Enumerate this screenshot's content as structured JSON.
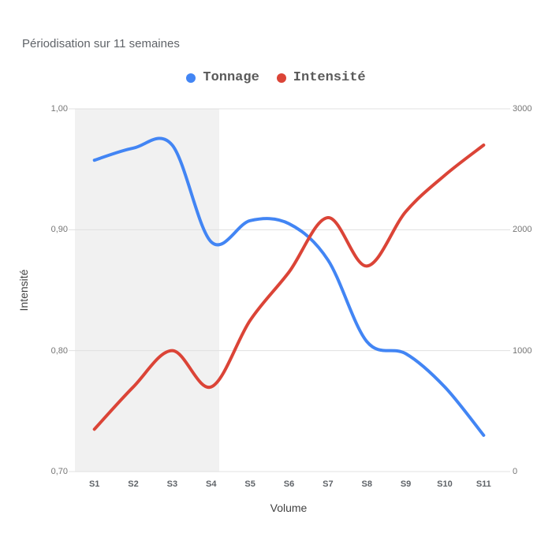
{
  "title": "Périodisation sur 11 semaines",
  "legend": {
    "items": [
      {
        "label": "Tonnage",
        "color": "#4285f4"
      },
      {
        "label": "Intensité",
        "color": "#db4437"
      }
    ]
  },
  "colors": {
    "tonnage_blue": "#4285f4",
    "intensite_red": "#db4437",
    "highlight_band": "#f1f1f1",
    "gridline": "#e0e0e0"
  },
  "chart_data": {
    "type": "line",
    "smooth": true,
    "legend_position": "top",
    "grid": "horizontal-only",
    "categories": [
      "S1",
      "S2",
      "S3",
      "S4",
      "S5",
      "S6",
      "S7",
      "S8",
      "S9",
      "S10",
      "S11"
    ],
    "series": [
      {
        "name": "Tonnage",
        "axis": "right",
        "color": "#4285f4",
        "values": [
          2575,
          2675,
          2700,
          1900,
          2075,
          2050,
          1750,
          1075,
          975,
          700,
          300
        ]
      },
      {
        "name": "Intensité",
        "axis": "left",
        "color": "#db4437",
        "values": [
          0.735,
          0.77,
          0.8,
          0.77,
          0.825,
          0.865,
          0.91,
          0.87,
          0.915,
          0.945,
          0.97
        ]
      }
    ],
    "x_axis": {
      "title": "Volume"
    },
    "y_axis_left": {
      "title": "Intensité",
      "min": 0.7,
      "max": 1.0,
      "ticks": [
        {
          "value": 1.0,
          "label": "1,00"
        },
        {
          "value": 0.9,
          "label": "0,90"
        },
        {
          "value": 0.8,
          "label": "0,80"
        },
        {
          "value": 0.7,
          "label": "0,70"
        }
      ]
    },
    "y_axis_right": {
      "title": "",
      "min": 0,
      "max": 3000,
      "ticks": [
        {
          "value": 3000,
          "label": "3000"
        },
        {
          "value": 2000,
          "label": "2000"
        },
        {
          "value": 1000,
          "label": "1000"
        },
        {
          "value": 0,
          "label": "0"
        }
      ]
    },
    "highlight_band": {
      "covers_categories": "S1–S4",
      "color": "#f1f1f1",
      "start_fraction": 0.0,
      "end_fraction": 0.337
    }
  }
}
